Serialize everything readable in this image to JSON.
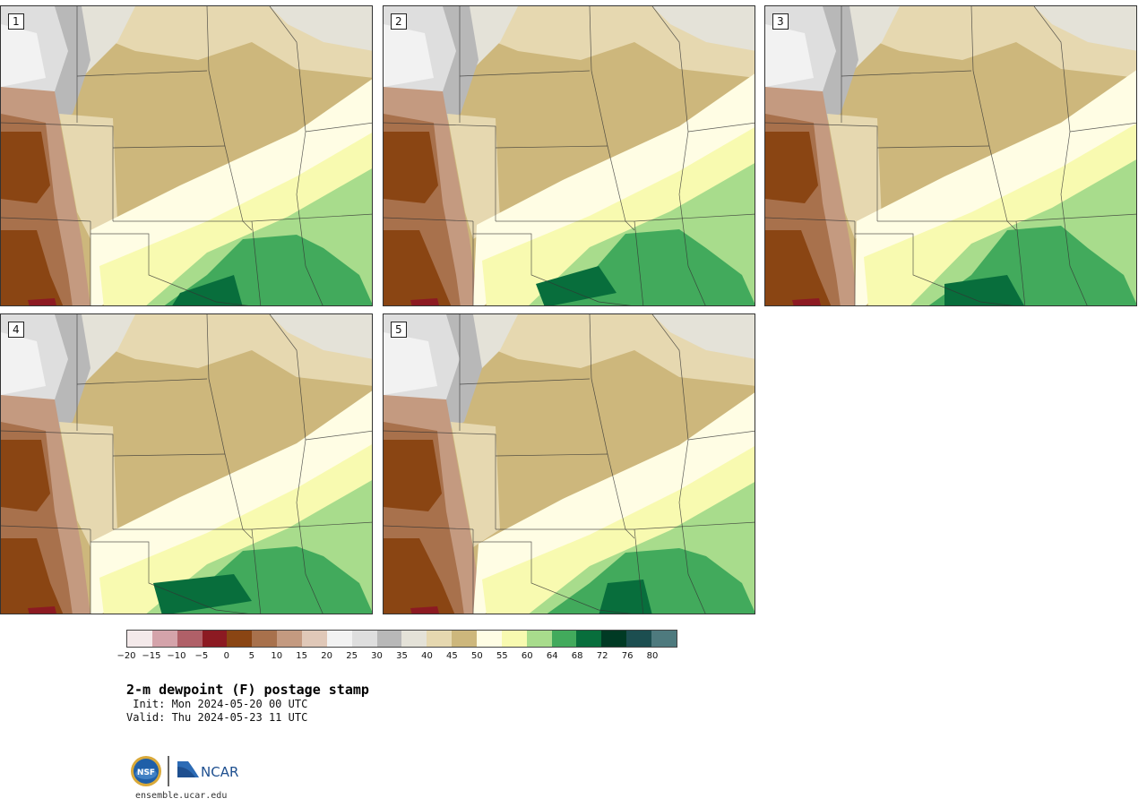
{
  "panels": [
    {
      "number": "1"
    },
    {
      "number": "2"
    },
    {
      "number": "3"
    },
    {
      "number": "4"
    },
    {
      "number": "5"
    }
  ],
  "colorbar": {
    "colors": [
      "#f4e9ea",
      "#d4a3aa",
      "#b06068",
      "#8c1a22",
      "#8a4513",
      "#a8714c",
      "#c49a80",
      "#e0c8b8",
      "#f2f2f2",
      "#dedede",
      "#b8b8b8",
      "#e4e2d8",
      "#e6d8b0",
      "#cdb77c",
      "#fffde4",
      "#f8fab0",
      "#a8dc8c",
      "#42aa5c",
      "#086e3c",
      "#003a24",
      "#1c4e50",
      "#4e7a7e"
    ],
    "ticks": [
      "−20",
      "−15",
      "−10",
      "−5",
      "0",
      "5",
      "10",
      "15",
      "20",
      "25",
      "30",
      "35",
      "40",
      "45",
      "50",
      "55",
      "60",
      "64",
      "68",
      "72",
      "76",
      "80"
    ]
  },
  "title": "2-m dewpoint (F) postage stamp",
  "init": " Init: Mon 2024-05-20 00 UTC",
  "valid": "Valid: Thu 2024-05-23 11 UTC",
  "footer": {
    "url": "ensemble.ucar.edu",
    "logo_text": "NCAR",
    "nsf_text": "NSF"
  }
}
